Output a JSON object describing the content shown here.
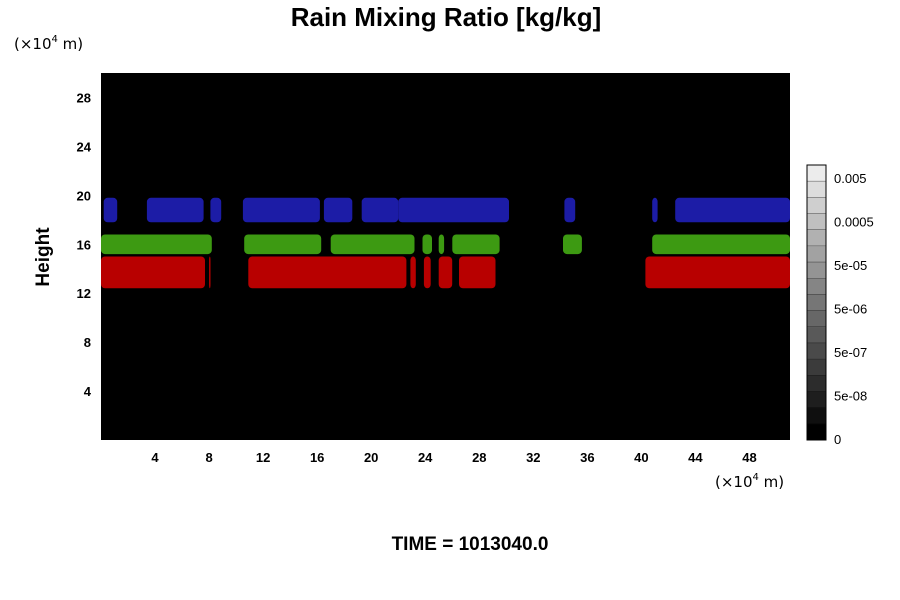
{
  "chart_data": {
    "type": "heatmap",
    "title": "Rain Mixing Ratio [kg/kg]",
    "ylabel": "Height",
    "x_unit": {
      "prefix": "(×10",
      "exp": "4",
      "suffix": " m)"
    },
    "y_unit": {
      "prefix": "(×10",
      "exp": "4",
      "suffix": " m)"
    },
    "xlim": [
      0,
      51
    ],
    "ylim": [
      0,
      30
    ],
    "x_ticks": [
      4,
      8,
      12,
      16,
      20,
      24,
      28,
      32,
      36,
      40,
      44,
      48
    ],
    "y_ticks": [
      4,
      8,
      12,
      16,
      20,
      24,
      28
    ],
    "background_color": "#000000",
    "bands": [
      {
        "name": "blue",
        "color": "#1c1ca6",
        "y_range": [
          17.8,
          19.8
        ],
        "x_segments": [
          [
            0.2,
            1.2
          ],
          [
            3.4,
            7.6
          ],
          [
            8.1,
            8.9
          ],
          [
            10.5,
            16.2
          ],
          [
            16.5,
            18.6
          ],
          [
            19.3,
            22.0
          ],
          [
            22.0,
            30.2
          ],
          [
            34.3,
            35.1
          ],
          [
            40.8,
            41.2
          ],
          [
            42.5,
            51.0
          ]
        ]
      },
      {
        "name": "green",
        "color": "#3d9a12",
        "y_range": [
          15.2,
          16.8
        ],
        "x_segments": [
          [
            0.0,
            8.2
          ],
          [
            10.6,
            16.3
          ],
          [
            17.0,
            23.2
          ],
          [
            23.8,
            24.5
          ],
          [
            25.0,
            25.4
          ],
          [
            26.0,
            29.5
          ],
          [
            34.2,
            35.6
          ],
          [
            40.8,
            51.0
          ]
        ]
      },
      {
        "name": "red",
        "color": "#b80000",
        "y_range": [
          12.4,
          15.0
        ],
        "x_segments": [
          [
            0.0,
            7.7
          ],
          [
            8.0,
            8.1
          ],
          [
            10.9,
            22.6
          ],
          [
            22.9,
            23.3
          ],
          [
            23.9,
            24.4
          ],
          [
            25.0,
            26.0
          ],
          [
            26.5,
            29.2
          ],
          [
            40.3,
            51.0
          ]
        ]
      }
    ],
    "colorbar": {
      "labels": [
        "0.005",
        "0.0005",
        "5e-05",
        "5e-06",
        "5e-07",
        "5e-08",
        "0"
      ],
      "levels": 17,
      "color_low": "#000000",
      "color_high": "#ececec"
    }
  },
  "footer": {
    "time_label": "TIME = 1013040.0"
  }
}
